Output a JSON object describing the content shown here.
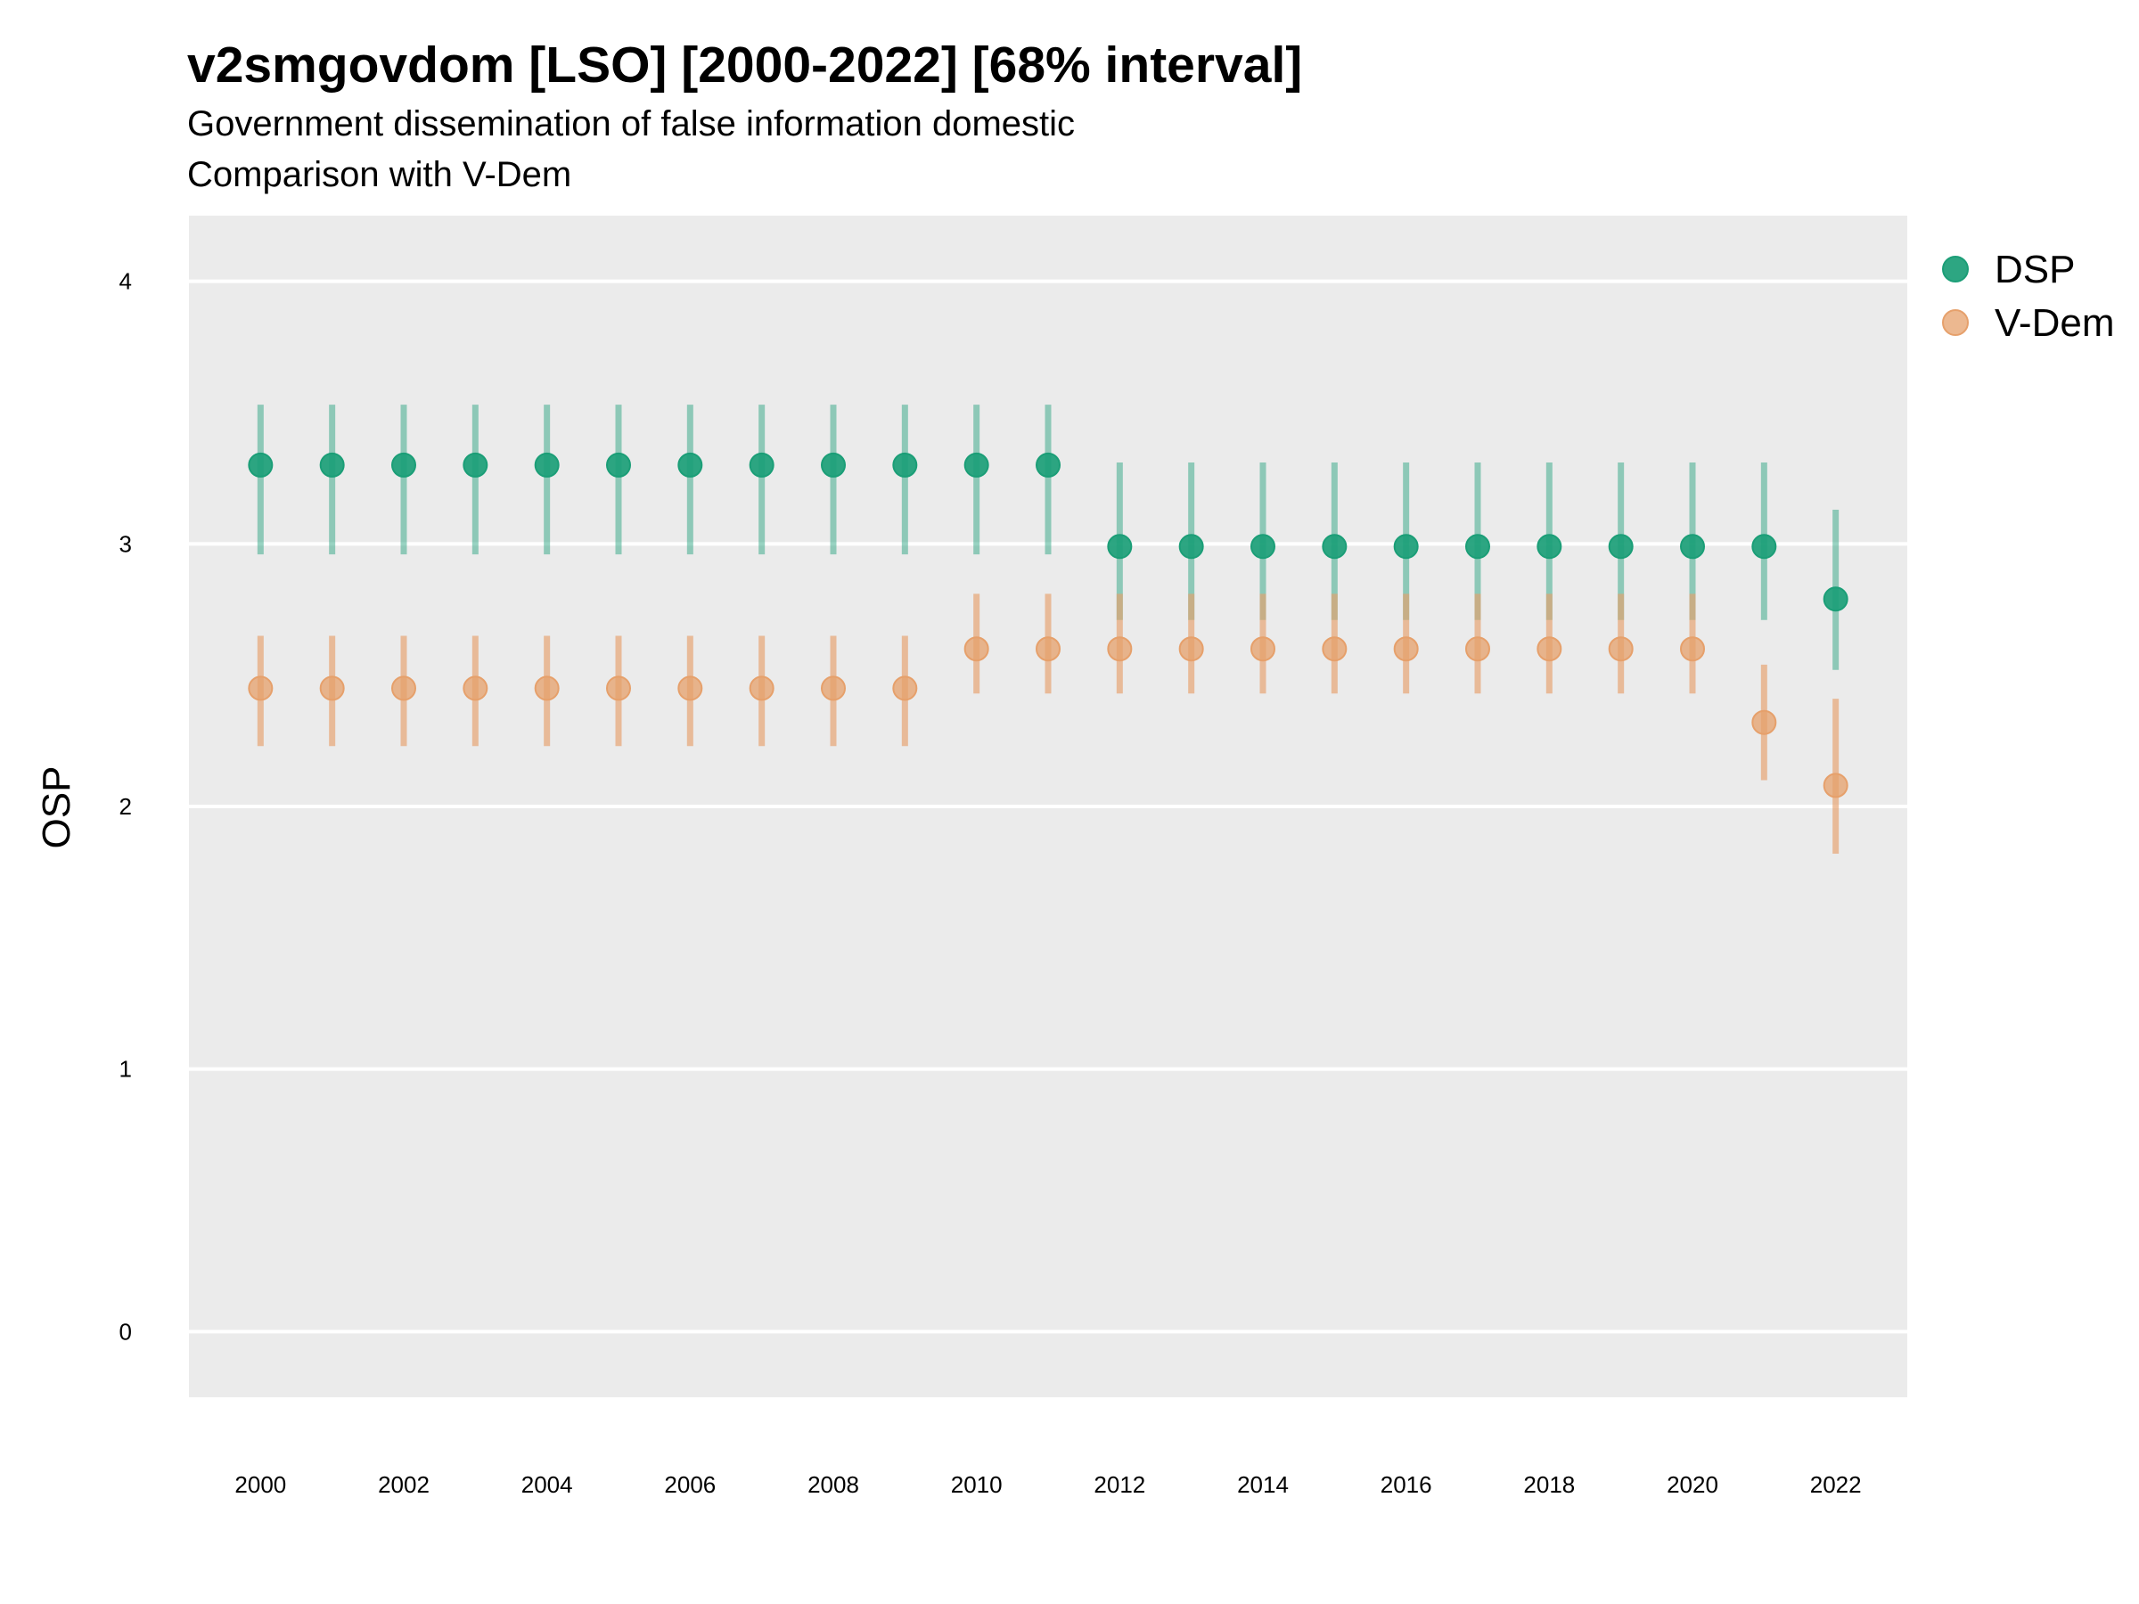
{
  "chart_data": {
    "type": "scatter",
    "title": "v2smgovdom [LSO] [2000-2022] [68% interval]",
    "subtitle_line1": "Government dissemination of false information domestic",
    "subtitle_line2": "Comparison with V-Dem",
    "xlabel": "",
    "ylabel": "OSP",
    "x": [
      2000,
      2001,
      2002,
      2003,
      2004,
      2005,
      2006,
      2007,
      2008,
      2009,
      2010,
      2011,
      2012,
      2013,
      2014,
      2015,
      2016,
      2017,
      2018,
      2019,
      2020,
      2021,
      2022
    ],
    "x_tick_labels": [
      "2000",
      "2002",
      "2004",
      "2006",
      "2008",
      "2010",
      "2012",
      "2014",
      "2016",
      "2018",
      "2020",
      "2022"
    ],
    "y_tick_labels": [
      "0",
      "1",
      "2",
      "3",
      "4"
    ],
    "xlim": [
      1999.0,
      2023.0
    ],
    "ylim": [
      -0.25,
      4.25
    ],
    "grid": true,
    "legend_position": "right",
    "series": [
      {
        "name": "DSP",
        "color": "#1b9e77",
        "values": [
          3.3,
          3.3,
          3.3,
          3.3,
          3.3,
          3.3,
          3.3,
          3.3,
          3.3,
          3.3,
          3.3,
          3.3,
          2.99,
          2.99,
          2.99,
          2.99,
          2.99,
          2.99,
          2.99,
          2.99,
          2.99,
          2.99,
          2.79
        ],
        "lower": [
          2.96,
          2.96,
          2.96,
          2.96,
          2.96,
          2.96,
          2.96,
          2.96,
          2.96,
          2.96,
          2.96,
          2.96,
          2.71,
          2.71,
          2.71,
          2.71,
          2.71,
          2.71,
          2.71,
          2.71,
          2.71,
          2.71,
          2.52
        ],
        "upper": [
          3.53,
          3.53,
          3.53,
          3.53,
          3.53,
          3.53,
          3.53,
          3.53,
          3.53,
          3.53,
          3.53,
          3.53,
          3.31,
          3.31,
          3.31,
          3.31,
          3.31,
          3.31,
          3.31,
          3.31,
          3.31,
          3.31,
          3.13
        ]
      },
      {
        "name": "V-Dem",
        "color": "#e6a06b",
        "values": [
          2.45,
          2.45,
          2.45,
          2.45,
          2.45,
          2.45,
          2.45,
          2.45,
          2.45,
          2.45,
          2.6,
          2.6,
          2.6,
          2.6,
          2.6,
          2.6,
          2.6,
          2.6,
          2.6,
          2.6,
          2.6,
          2.32,
          2.08
        ],
        "lower": [
          2.23,
          2.23,
          2.23,
          2.23,
          2.23,
          2.23,
          2.23,
          2.23,
          2.23,
          2.23,
          2.43,
          2.43,
          2.43,
          2.43,
          2.43,
          2.43,
          2.43,
          2.43,
          2.43,
          2.43,
          2.43,
          2.1,
          1.82
        ],
        "upper": [
          2.65,
          2.65,
          2.65,
          2.65,
          2.65,
          2.65,
          2.65,
          2.65,
          2.65,
          2.65,
          2.81,
          2.81,
          2.81,
          2.81,
          2.81,
          2.81,
          2.81,
          2.81,
          2.81,
          2.81,
          2.81,
          2.54,
          2.41
        ]
      }
    ]
  }
}
